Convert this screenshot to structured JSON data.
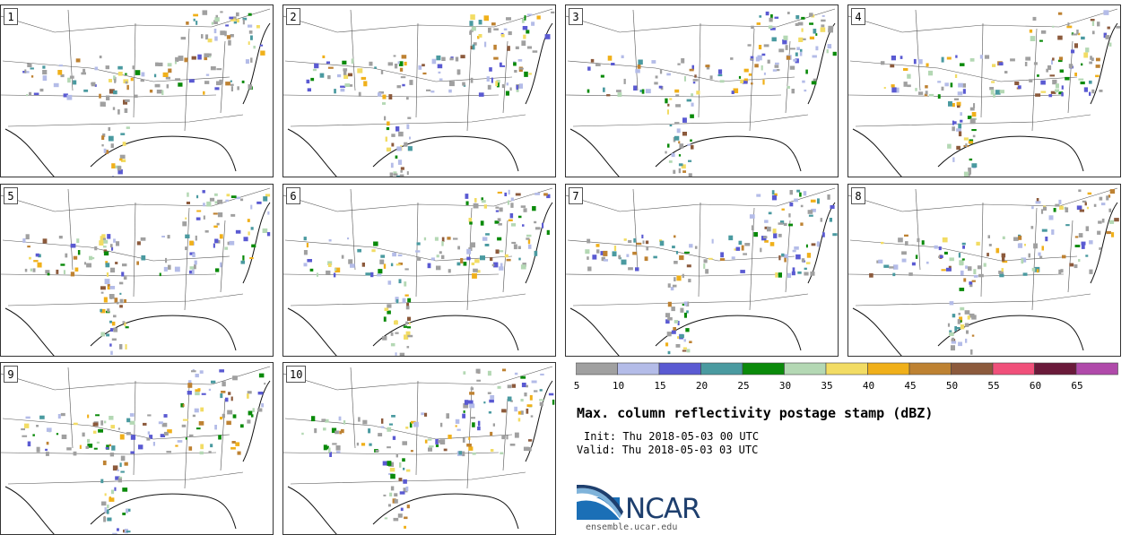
{
  "panels": [
    {
      "label": "1"
    },
    {
      "label": "2"
    },
    {
      "label": "3"
    },
    {
      "label": "4"
    },
    {
      "label": "5"
    },
    {
      "label": "6"
    },
    {
      "label": "7"
    },
    {
      "label": "8"
    },
    {
      "label": "9"
    },
    {
      "label": "10"
    }
  ],
  "colorbar": {
    "ticks": [
      "5",
      "10",
      "15",
      "20",
      "25",
      "30",
      "35",
      "40",
      "45",
      "50",
      "55",
      "60",
      "65"
    ],
    "colors": [
      "#a0a0a0",
      "#b4bce8",
      "#5a5ad2",
      "#4a9aa0",
      "#0a8a0a",
      "#b4d8b4",
      "#f2dc64",
      "#f0b01a",
      "#be8232",
      "#8c5a3c",
      "#f0507a",
      "#6a1a3a",
      "#b04aaa"
    ]
  },
  "title": "Max. column reflectivity postage stamp (dBZ)",
  "init": "Init: Thu 2018-05-03 00 UTC",
  "valid": "Valid: Thu 2018-05-03 03 UTC",
  "logo": {
    "text": "NCAR",
    "url": "ensemble.ucar.edu"
  }
}
